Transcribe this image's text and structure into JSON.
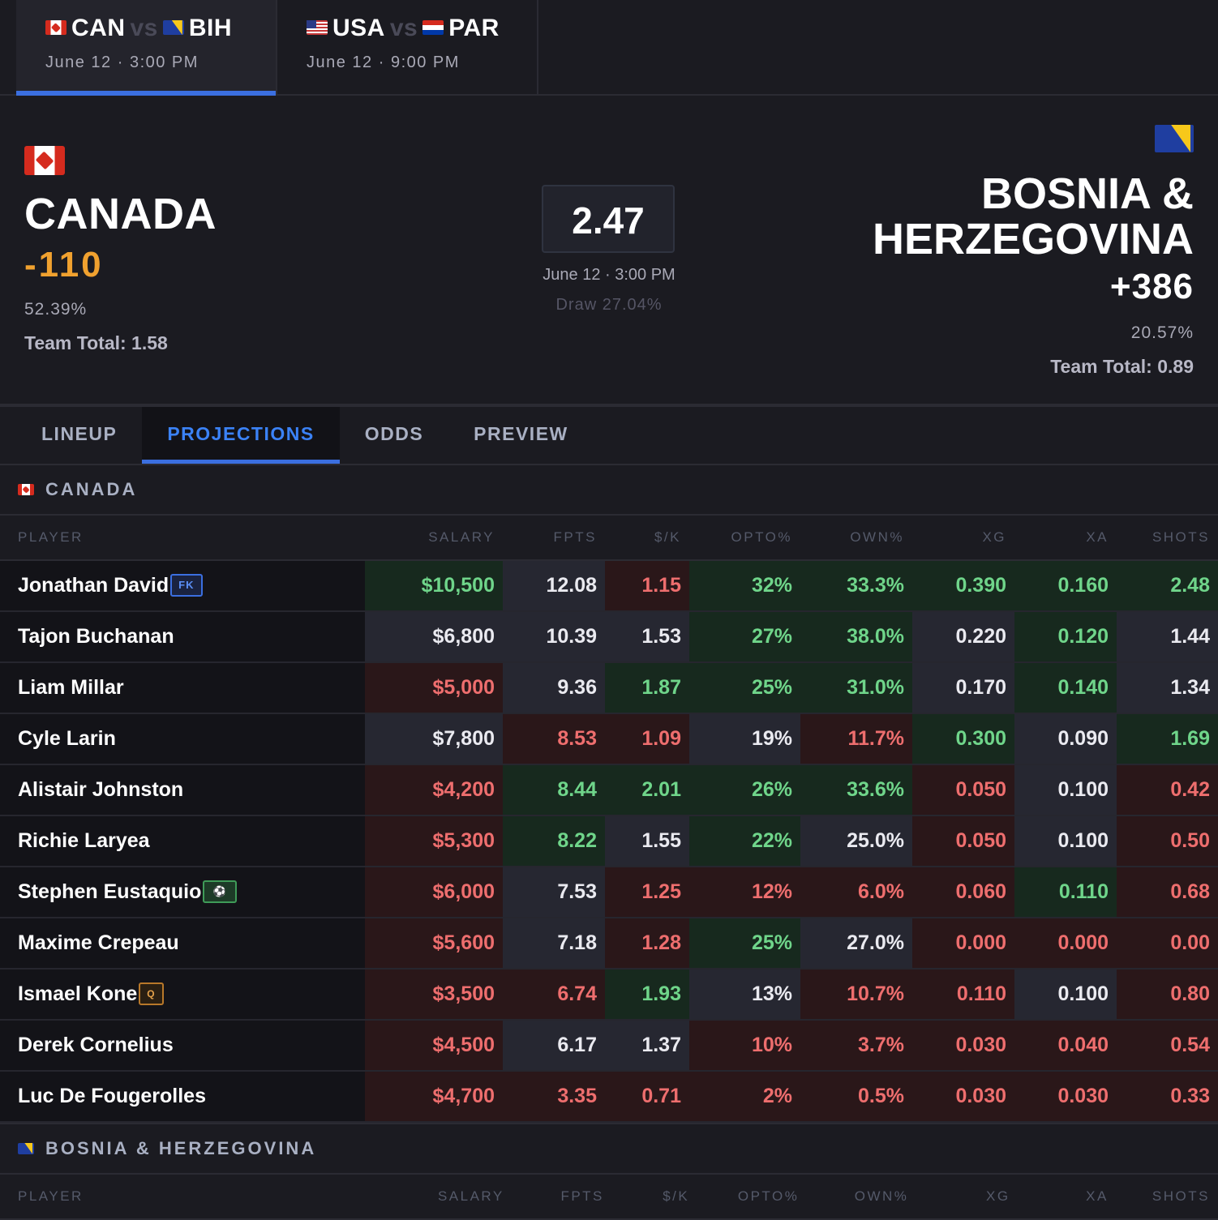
{
  "match_tabs": [
    {
      "home": "CAN",
      "vs": "vs",
      "away": "BIH",
      "when": "June 12 · 3:00 PM",
      "home_flag": "flag-ca",
      "away_flag": "flag-ba"
    },
    {
      "home": "USA",
      "vs": "vs",
      "away": "PAR",
      "when": "June 12 · 9:00 PM",
      "home_flag": "flag-us",
      "away_flag": "flag-py"
    }
  ],
  "scoreboard": {
    "home": {
      "name": "CANADA",
      "odds": "-110",
      "pct": "52.39%",
      "team_total": "Team Total: 1.58"
    },
    "center": {
      "total": "2.47",
      "date": "June 12 · 3:00 PM",
      "draw": "Draw 27.04%"
    },
    "away": {
      "name_line1": "BOSNIA &",
      "name_line2": "HERZEGOVINA",
      "odds": "+386",
      "pct": "20.57%",
      "team_total": "Team Total: 0.89"
    }
  },
  "section_tabs": [
    "LINEUP",
    "PROJECTIONS",
    "ODDS",
    "PREVIEW"
  ],
  "active_section_tab": "PROJECTIONS",
  "columns": [
    "PLAYER",
    "SALARY",
    "FPTS",
    "$/K",
    "OPTO%",
    "OWN%",
    "XG",
    "XA",
    "SHOTS"
  ],
  "colors": {
    "positive": "#6fd58a",
    "negative": "#ee6e6e",
    "accent": "#3b82f6",
    "odds_home": "#f0a12f"
  },
  "canada": {
    "title": "CANADA",
    "players": [
      {
        "name": "Jonathan David",
        "tag": "FK",
        "tag_type": "fk",
        "cells": [
          [
            "$10,500",
            "g"
          ],
          [
            "12.08",
            "n"
          ],
          [
            "1.15",
            "r"
          ],
          [
            "32%",
            "g"
          ],
          [
            "33.3%",
            "g"
          ],
          [
            "0.390",
            "g"
          ],
          [
            "0.160",
            "g"
          ],
          [
            "2.48",
            "g"
          ]
        ]
      },
      {
        "name": "Tajon Buchanan",
        "tag": "",
        "cells": [
          [
            "$6,800",
            "n"
          ],
          [
            "10.39",
            "n"
          ],
          [
            "1.53",
            "n"
          ],
          [
            "27%",
            "g"
          ],
          [
            "38.0%",
            "g"
          ],
          [
            "0.220",
            "n"
          ],
          [
            "0.120",
            "g"
          ],
          [
            "1.44",
            "n"
          ]
        ]
      },
      {
        "name": "Liam Millar",
        "tag": "",
        "cells": [
          [
            "$5,000",
            "r"
          ],
          [
            "9.36",
            "n"
          ],
          [
            "1.87",
            "g"
          ],
          [
            "25%",
            "g"
          ],
          [
            "31.0%",
            "g"
          ],
          [
            "0.170",
            "n"
          ],
          [
            "0.140",
            "g"
          ],
          [
            "1.34",
            "n"
          ]
        ]
      },
      {
        "name": "Cyle Larin",
        "tag": "",
        "cells": [
          [
            "$7,800",
            "n"
          ],
          [
            "8.53",
            "r"
          ],
          [
            "1.09",
            "r"
          ],
          [
            "19%",
            "n"
          ],
          [
            "11.7%",
            "r"
          ],
          [
            "0.300",
            "g"
          ],
          [
            "0.090",
            "n"
          ],
          [
            "1.69",
            "g"
          ]
        ]
      },
      {
        "name": "Alistair Johnston",
        "tag": "",
        "cells": [
          [
            "$4,200",
            "r"
          ],
          [
            "8.44",
            "g"
          ],
          [
            "2.01",
            "g"
          ],
          [
            "26%",
            "g"
          ],
          [
            "33.6%",
            "g"
          ],
          [
            "0.050",
            "r"
          ],
          [
            "0.100",
            "n"
          ],
          [
            "0.42",
            "r"
          ]
        ]
      },
      {
        "name": "Richie Laryea",
        "tag": "",
        "cells": [
          [
            "$5,300",
            "r"
          ],
          [
            "8.22",
            "g"
          ],
          [
            "1.55",
            "n"
          ],
          [
            "22%",
            "g"
          ],
          [
            "25.0%",
            "n"
          ],
          [
            "0.050",
            "r"
          ],
          [
            "0.100",
            "n"
          ],
          [
            "0.50",
            "r"
          ]
        ]
      },
      {
        "name": "Stephen Eustaquio",
        "tag": "⚽",
        "tag_type": "ball",
        "cells": [
          [
            "$6,000",
            "r"
          ],
          [
            "7.53",
            "n"
          ],
          [
            "1.25",
            "r"
          ],
          [
            "12%",
            "r"
          ],
          [
            "6.0%",
            "r"
          ],
          [
            "0.060",
            "r"
          ],
          [
            "0.110",
            "g"
          ],
          [
            "0.68",
            "r"
          ]
        ]
      },
      {
        "name": "Maxime Crepeau",
        "tag": "",
        "cells": [
          [
            "$5,600",
            "r"
          ],
          [
            "7.18",
            "n"
          ],
          [
            "1.28",
            "r"
          ],
          [
            "25%",
            "g"
          ],
          [
            "27.0%",
            "n"
          ],
          [
            "0.000",
            "r"
          ],
          [
            "0.000",
            "r"
          ],
          [
            "0.00",
            "r"
          ]
        ]
      },
      {
        "name": "Ismael Kone",
        "tag": "Q",
        "tag_type": "q",
        "cells": [
          [
            "$3,500",
            "r"
          ],
          [
            "6.74",
            "r"
          ],
          [
            "1.93",
            "g"
          ],
          [
            "13%",
            "n"
          ],
          [
            "10.7%",
            "r"
          ],
          [
            "0.110",
            "r"
          ],
          [
            "0.100",
            "n"
          ],
          [
            "0.80",
            "r"
          ]
        ]
      },
      {
        "name": "Derek Cornelius",
        "tag": "",
        "cells": [
          [
            "$4,500",
            "r"
          ],
          [
            "6.17",
            "n"
          ],
          [
            "1.37",
            "n"
          ],
          [
            "10%",
            "r"
          ],
          [
            "3.7%",
            "r"
          ],
          [
            "0.030",
            "r"
          ],
          [
            "0.040",
            "r"
          ],
          [
            "0.54",
            "r"
          ]
        ]
      },
      {
        "name": "Luc De Fougerolles",
        "tag": "",
        "cells": [
          [
            "$4,700",
            "r"
          ],
          [
            "3.35",
            "r"
          ],
          [
            "0.71",
            "r"
          ],
          [
            "2%",
            "r"
          ],
          [
            "0.5%",
            "r"
          ],
          [
            "0.030",
            "r"
          ],
          [
            "0.030",
            "r"
          ],
          [
            "0.33",
            "r"
          ]
        ]
      }
    ]
  },
  "bosnia": {
    "title": "BOSNIA & HERZEGOVINA"
  }
}
